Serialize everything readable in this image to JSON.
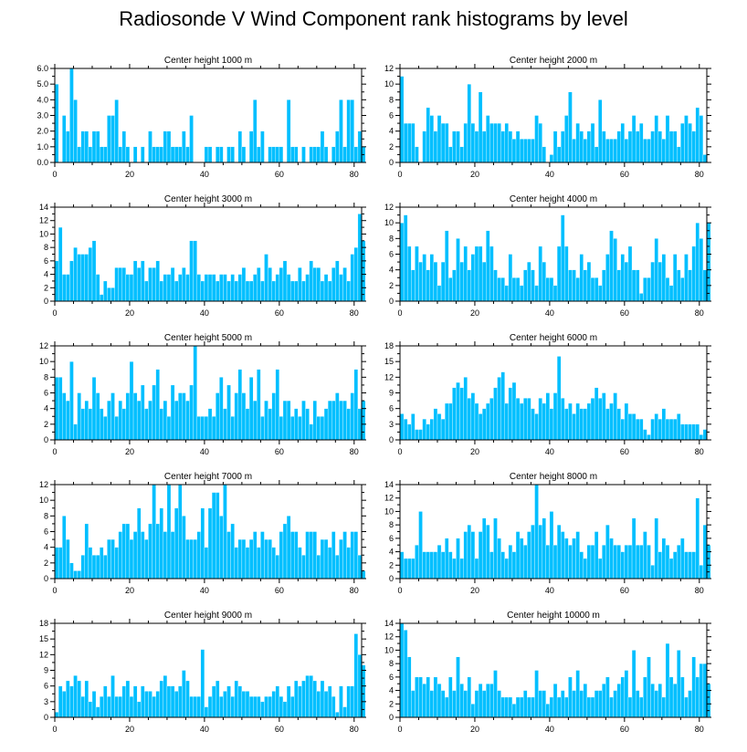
{
  "title": "Radiosonde V Wind Component rank histograms by level",
  "colors": {
    "bar": "#00bfff",
    "frame": "#000000"
  },
  "chart_data": [
    {
      "type": "bar",
      "title": "Center height 1000 m",
      "xlim": [
        0,
        82
      ],
      "ylim": [
        0,
        6
      ],
      "xticks": [
        0,
        20,
        40,
        60,
        80
      ],
      "yticks": [
        0,
        1,
        2,
        3,
        4,
        5,
        6
      ],
      "yticklabels": [
        "0.0",
        "1.0",
        "2.0",
        "3.0",
        "4.0",
        "5.0",
        "6.0"
      ],
      "values": [
        5,
        0,
        3,
        2,
        6,
        4,
        1,
        2,
        2,
        1,
        2,
        2,
        1,
        1,
        3,
        3,
        4,
        1,
        2,
        1,
        0,
        1,
        0,
        1,
        0,
        2,
        1,
        1,
        1,
        2,
        2,
        1,
        1,
        1,
        2,
        1,
        3,
        0,
        0,
        0,
        1,
        1,
        0,
        1,
        1,
        0,
        1,
        1,
        0,
        2,
        1,
        0,
        2,
        4,
        1,
        2,
        0,
        1,
        1,
        1,
        1,
        0,
        4,
        1,
        1,
        0,
        1,
        0,
        1,
        1,
        1,
        2,
        1,
        0,
        1,
        2,
        4,
        1,
        4,
        4,
        1,
        2,
        1
      ]
    },
    {
      "type": "bar",
      "title": "Center height 2000 m",
      "xlim": [
        0,
        82
      ],
      "ylim": [
        0,
        12
      ],
      "xticks": [
        0,
        20,
        40,
        60,
        80
      ],
      "yticks": [
        0,
        2,
        4,
        6,
        8,
        10,
        12
      ],
      "yticklabels": [
        "0",
        "2",
        "4",
        "6",
        "8",
        "10",
        "12"
      ],
      "values": [
        11,
        5,
        5,
        5,
        2,
        0,
        4,
        7,
        6,
        4,
        6,
        5,
        5,
        2,
        4,
        4,
        2,
        5,
        10,
        5,
        4,
        9,
        4,
        6,
        5,
        5,
        5,
        4,
        5,
        4,
        3,
        4,
        3,
        3,
        3,
        3,
        6,
        5,
        2,
        0,
        1,
        4,
        2,
        4,
        6,
        9,
        3,
        5,
        4,
        3,
        4,
        5,
        2,
        8,
        4,
        3,
        3,
        3,
        4,
        5,
        3,
        4,
        6,
        4,
        5,
        3,
        3,
        4,
        6,
        4,
        3,
        6,
        4,
        4,
        2,
        5,
        6,
        5,
        4,
        7,
        6,
        1
      ]
    },
    {
      "type": "bar",
      "title": "Center height 3000 m",
      "xlim": [
        0,
        82
      ],
      "ylim": [
        0,
        14
      ],
      "xticks": [
        0,
        20,
        40,
        60,
        80
      ],
      "yticks": [
        0,
        2,
        4,
        6,
        8,
        10,
        12,
        14
      ],
      "yticklabels": [
        "0",
        "2",
        "4",
        "6",
        "8",
        "10",
        "12",
        "14"
      ],
      "values": [
        6,
        11,
        4,
        4,
        6,
        8,
        7,
        7,
        7,
        8,
        9,
        4,
        1,
        3,
        2,
        2,
        5,
        5,
        5,
        4,
        4,
        6,
        5,
        6,
        3,
        5,
        5,
        6,
        3,
        4,
        4,
        5,
        3,
        4,
        5,
        4,
        9,
        9,
        4,
        3,
        4,
        4,
        4,
        3,
        4,
        4,
        3,
        4,
        3,
        4,
        5,
        3,
        3,
        4,
        5,
        3,
        7,
        5,
        3,
        4,
        5,
        6,
        4,
        3,
        3,
        5,
        3,
        4,
        6,
        5,
        5,
        3,
        4,
        3,
        5,
        6,
        4,
        5,
        3,
        7,
        8,
        13,
        9
      ]
    },
    {
      "type": "bar",
      "title": "Center height 4000 m",
      "xlim": [
        0,
        82
      ],
      "ylim": [
        0,
        12
      ],
      "xticks": [
        0,
        20,
        40,
        60,
        80
      ],
      "yticks": [
        0,
        2,
        4,
        6,
        8,
        10,
        12
      ],
      "yticklabels": [
        "0",
        "2",
        "4",
        "6",
        "8",
        "10",
        "12"
      ],
      "values": [
        10,
        11,
        7,
        4,
        7,
        5,
        6,
        4,
        6,
        5,
        2,
        5,
        9,
        3,
        4,
        8,
        5,
        7,
        4,
        6,
        7,
        7,
        5,
        9,
        7,
        4,
        3,
        3,
        2,
        6,
        3,
        3,
        2,
        4,
        5,
        4,
        2,
        7,
        5,
        3,
        3,
        2,
        7,
        11,
        7,
        4,
        4,
        3,
        6,
        4,
        5,
        3,
        3,
        2,
        4,
        6,
        9,
        8,
        4,
        6,
        5,
        7,
        4,
        4,
        1,
        3,
        3,
        5,
        8,
        5,
        6,
        3,
        2,
        6,
        4,
        3,
        6,
        4,
        7,
        10,
        8,
        4,
        10
      ]
    },
    {
      "type": "bar",
      "title": "Center height 5000 m",
      "xlim": [
        0,
        82
      ],
      "ylim": [
        0,
        12
      ],
      "xticks": [
        0,
        20,
        40,
        60,
        80
      ],
      "yticks": [
        0,
        2,
        4,
        6,
        8,
        10,
        12
      ],
      "yticklabels": [
        "0",
        "2",
        "4",
        "6",
        "8",
        "10",
        "12"
      ],
      "values": [
        8,
        8,
        6,
        5,
        10,
        2,
        6,
        4,
        5,
        4,
        8,
        6,
        4,
        3,
        5,
        6,
        3,
        5,
        4,
        6,
        10,
        6,
        5,
        7,
        4,
        5,
        7,
        9,
        4,
        5,
        3,
        7,
        5,
        6,
        6,
        5,
        7,
        12,
        3,
        3,
        3,
        4,
        3,
        6,
        8,
        4,
        7,
        3,
        6,
        9,
        6,
        4,
        8,
        5,
        9,
        3,
        5,
        4,
        6,
        9,
        3,
        5,
        5,
        3,
        4,
        3,
        5,
        4,
        2,
        5,
        3,
        3,
        4,
        5,
        5,
        6,
        5,
        5,
        4,
        6,
        9,
        4,
        5
      ]
    },
    {
      "type": "bar",
      "title": "Center height 6000 m",
      "xlim": [
        0,
        82
      ],
      "ylim": [
        0,
        18
      ],
      "xticks": [
        0,
        20,
        40,
        60,
        80
      ],
      "yticks": [
        0,
        3,
        6,
        9,
        12,
        15,
        18
      ],
      "yticklabels": [
        "0",
        "3",
        "6",
        "9",
        "12",
        "15",
        "18"
      ],
      "values": [
        5,
        4,
        3,
        5,
        2,
        2,
        4,
        3,
        4,
        6,
        5,
        4,
        7,
        7,
        10,
        11,
        10,
        12,
        8,
        9,
        7,
        5,
        6,
        7,
        8,
        10,
        12,
        13,
        7,
        10,
        11,
        8,
        7,
        8,
        8,
        6,
        5,
        8,
        7,
        9,
        6,
        9,
        16,
        8,
        6,
        7,
        5,
        7,
        6,
        6,
        7,
        8,
        10,
        8,
        9,
        6,
        7,
        9,
        6,
        4,
        7,
        5,
        5,
        4,
        4,
        2,
        1,
        4,
        5,
        4,
        6,
        4,
        4,
        4,
        5,
        3,
        3,
        3,
        3,
        3,
        1,
        2,
        0
      ]
    },
    {
      "type": "bar",
      "title": "Center height 7000 m",
      "xlim": [
        0,
        82
      ],
      "ylim": [
        0,
        12
      ],
      "xticks": [
        0,
        20,
        40,
        60,
        80
      ],
      "yticks": [
        0,
        2,
        4,
        6,
        8,
        10,
        12
      ],
      "yticklabels": [
        "0",
        "2",
        "4",
        "6",
        "8",
        "10",
        "12"
      ],
      "values": [
        4,
        4,
        8,
        5,
        2,
        1,
        1,
        3,
        7,
        4,
        3,
        3,
        4,
        3,
        5,
        5,
        4,
        6,
        7,
        7,
        5,
        6,
        9,
        6,
        5,
        7,
        12,
        7,
        9,
        6,
        12,
        6,
        9,
        12,
        8,
        5,
        5,
        5,
        6,
        9,
        4,
        9,
        11,
        11,
        8,
        12,
        6,
        7,
        4,
        5,
        5,
        4,
        5,
        6,
        4,
        6,
        5,
        5,
        4,
        3,
        6,
        7,
        8,
        6,
        6,
        4,
        3,
        6,
        6,
        6,
        3,
        5,
        5,
        4,
        6,
        3,
        5,
        6,
        4,
        6,
        6,
        3,
        1
      ]
    },
    {
      "type": "bar",
      "title": "Center height 8000 m",
      "xlim": [
        0,
        82
      ],
      "ylim": [
        0,
        14
      ],
      "xticks": [
        0,
        20,
        40,
        60,
        80
      ],
      "yticks": [
        0,
        2,
        4,
        6,
        8,
        10,
        12,
        14
      ],
      "yticklabels": [
        "0",
        "2",
        "4",
        "6",
        "8",
        "10",
        "12",
        "14"
      ],
      "values": [
        4,
        3,
        3,
        3,
        5,
        10,
        4,
        4,
        4,
        4,
        5,
        4,
        6,
        4,
        3,
        6,
        3,
        7,
        8,
        7,
        3,
        7,
        9,
        8,
        4,
        9,
        6,
        4,
        3,
        5,
        4,
        7,
        6,
        5,
        7,
        8,
        14,
        8,
        9,
        5,
        10,
        5,
        8,
        7,
        6,
        5,
        6,
        7,
        4,
        3,
        5,
        5,
        7,
        3,
        5,
        8,
        6,
        5,
        5,
        4,
        5,
        5,
        9,
        5,
        5,
        7,
        5,
        2,
        9,
        4,
        6,
        5,
        3,
        4,
        5,
        6,
        4,
        4,
        4,
        12,
        2,
        8,
        5
      ]
    },
    {
      "type": "bar",
      "title": "Center height 9000 m",
      "xlim": [
        0,
        82
      ],
      "ylim": [
        0,
        18
      ],
      "xticks": [
        0,
        20,
        40,
        60,
        80
      ],
      "yticks": [
        0,
        3,
        6,
        9,
        12,
        15,
        18
      ],
      "yticklabels": [
        "0",
        "3",
        "6",
        "9",
        "12",
        "15",
        "18"
      ],
      "values": [
        1,
        6,
        5,
        7,
        6,
        8,
        7,
        4,
        7,
        3,
        5,
        2,
        4,
        6,
        4,
        8,
        4,
        4,
        6,
        7,
        4,
        6,
        3,
        6,
        5,
        5,
        4,
        5,
        7,
        8,
        6,
        6,
        5,
        6,
        9,
        7,
        4,
        4,
        4,
        13,
        2,
        4,
        6,
        7,
        4,
        5,
        6,
        4,
        7,
        6,
        5,
        5,
        4,
        4,
        4,
        3,
        4,
        4,
        5,
        6,
        4,
        3,
        6,
        4,
        7,
        6,
        7,
        8,
        8,
        7,
        5,
        7,
        5,
        6,
        4,
        1,
        6,
        2,
        6,
        6,
        16,
        12,
        10
      ]
    },
    {
      "type": "bar",
      "title": "Center height 10000 m",
      "xlim": [
        0,
        82
      ],
      "ylim": [
        0,
        14
      ],
      "xticks": [
        0,
        20,
        40,
        60,
        80
      ],
      "yticks": [
        0,
        2,
        4,
        6,
        8,
        10,
        12,
        14
      ],
      "yticklabels": [
        "0",
        "2",
        "4",
        "6",
        "8",
        "10",
        "12",
        "14"
      ],
      "values": [
        14,
        13,
        9,
        4,
        6,
        6,
        5,
        6,
        4,
        6,
        5,
        4,
        3,
        6,
        4,
        9,
        5,
        4,
        6,
        2,
        4,
        5,
        4,
        5,
        5,
        7,
        4,
        3,
        3,
        3,
        2,
        3,
        3,
        4,
        3,
        3,
        7,
        4,
        4,
        2,
        3,
        5,
        3,
        4,
        3,
        6,
        4,
        7,
        4,
        5,
        3,
        3,
        4,
        4,
        5,
        6,
        3,
        4,
        5,
        6,
        7,
        3,
        10,
        4,
        3,
        6,
        9,
        5,
        4,
        5,
        3,
        11,
        6,
        5,
        10,
        6,
        3,
        4,
        9,
        6,
        8,
        8,
        5
      ]
    }
  ]
}
